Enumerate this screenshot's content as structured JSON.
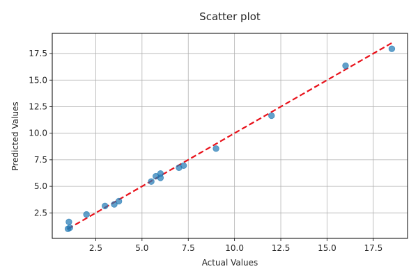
{
  "chart_data": {
    "type": "scatter",
    "title": "Scatter plot",
    "xlabel": "Actual Values",
    "ylabel": "Predicted Values",
    "xlim": [
      0.15,
      19.35
    ],
    "ylim": [
      0.1,
      19.4
    ],
    "xticks": [
      2.5,
      5.0,
      7.5,
      10.0,
      12.5,
      15.0,
      17.5
    ],
    "yticks": [
      2.5,
      5.0,
      7.5,
      10.0,
      12.5,
      15.0,
      17.5
    ],
    "xtick_labels": [
      "2.5",
      "5.0",
      "7.5",
      "10.0",
      "12.5",
      "15.0",
      "17.5"
    ],
    "ytick_labels": [
      "2.5",
      "5.0",
      "7.5",
      "10.0",
      "12.5",
      "15.0",
      "17.5"
    ],
    "grid": true,
    "points": [
      {
        "x": 1.0,
        "y": 1.0
      },
      {
        "x": 1.1,
        "y": 1.1
      },
      {
        "x": 1.05,
        "y": 1.65
      },
      {
        "x": 2.0,
        "y": 2.35
      },
      {
        "x": 3.0,
        "y": 3.15
      },
      {
        "x": 3.5,
        "y": 3.3
      },
      {
        "x": 3.75,
        "y": 3.6
      },
      {
        "x": 5.5,
        "y": 5.45
      },
      {
        "x": 5.75,
        "y": 5.95
      },
      {
        "x": 6.0,
        "y": 6.2
      },
      {
        "x": 6.0,
        "y": 5.8
      },
      {
        "x": 7.0,
        "y": 6.75
      },
      {
        "x": 7.25,
        "y": 6.95
      },
      {
        "x": 9.0,
        "y": 8.55
      },
      {
        "x": 12.0,
        "y": 11.65
      },
      {
        "x": 16.0,
        "y": 16.35
      },
      {
        "x": 18.5,
        "y": 17.95
      }
    ],
    "reference_line": {
      "x": [
        1.0,
        18.5
      ],
      "y": [
        1.0,
        18.5
      ],
      "style": "dashed",
      "color": "#e8111a"
    },
    "point_color": "#1f77b4",
    "point_alpha": 0.7
  }
}
